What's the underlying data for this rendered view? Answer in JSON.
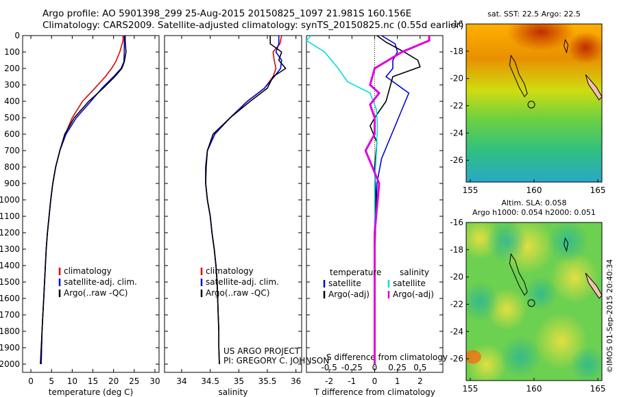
{
  "header": {
    "line1": "Argo profile: AO 5901398_299 25-Aug-2015 20150825_1097 21.981S 160.156E",
    "line2": "Climatology: CARS2009. Satellite-adjusted climatology: synTS_20150825.nc (0.55d earlier)"
  },
  "chart_data": [
    {
      "type": "line",
      "panel": "temperature",
      "xlabel": "temperature (deg C)",
      "xlim": [
        -2,
        31
      ],
      "xticks": [
        0,
        5,
        10,
        15,
        20,
        25,
        30
      ],
      "ylim": [
        0,
        2050
      ],
      "yticks": [
        0,
        100,
        200,
        300,
        400,
        500,
        600,
        700,
        800,
        900,
        1000,
        1100,
        1200,
        1300,
        1400,
        1500,
        1600,
        1700,
        1800,
        1900,
        2000
      ],
      "legend": [
        "climatology",
        "satellite-adj. clim.",
        "Argo(..raw -QC)"
      ],
      "series": [
        {
          "name": "climatology",
          "color": "#dd0000",
          "x": [
            22.3,
            22.3,
            21.5,
            20.5,
            19.5,
            18.0,
            15.5,
            12.5,
            10.0,
            8.3,
            7.0,
            6.0,
            5.3,
            4.8,
            4.4,
            4.0,
            3.7,
            3.5,
            3.3,
            3.1,
            2.9,
            2.7,
            2.6,
            2.5
          ],
          "y": [
            0,
            30,
            100,
            160,
            200,
            250,
            320,
            400,
            500,
            600,
            700,
            800,
            900,
            1000,
            1100,
            1200,
            1300,
            1400,
            1500,
            1600,
            1700,
            1800,
            1900,
            2000
          ]
        },
        {
          "name": "satellite-adj. clim.",
          "color": "#0000dd",
          "x": [
            22.6,
            22.6,
            22.6,
            22.5,
            21.8,
            20.0,
            17.2,
            14.5,
            11.0,
            8.5,
            7.0,
            6.0,
            5.3,
            4.8,
            4.4,
            4.0,
            3.7,
            3.5,
            3.3,
            3.1,
            2.9,
            2.7,
            2.6,
            2.5
          ],
          "y": [
            0,
            30,
            100,
            160,
            200,
            250,
            320,
            400,
            500,
            600,
            700,
            800,
            900,
            1000,
            1100,
            1200,
            1300,
            1400,
            1500,
            1600,
            1700,
            1800,
            1900,
            2000
          ]
        },
        {
          "name": "Argo(..raw -QC)",
          "color": "#000000",
          "x": [
            22.8,
            22.8,
            23.0,
            22.6,
            22.0,
            20.3,
            17.5,
            14.0,
            10.5,
            8.2,
            7.0,
            6.0,
            5.3,
            4.8,
            4.4,
            4.0,
            3.7,
            3.5,
            3.3,
            3.1,
            2.9,
            2.7,
            2.5,
            2.3
          ],
          "y": [
            0,
            30,
            100,
            160,
            200,
            250,
            320,
            400,
            500,
            600,
            700,
            800,
            900,
            1000,
            1100,
            1200,
            1300,
            1400,
            1500,
            1600,
            1700,
            1800,
            1900,
            2000
          ]
        }
      ]
    },
    {
      "type": "line",
      "panel": "salinity",
      "xlabel": "salinity",
      "xlim": [
        33.7,
        36.1
      ],
      "xticks": [
        34,
        34.5,
        35,
        35.5,
        36
      ],
      "ylim": [
        0,
        2050
      ],
      "legend": [
        "climatology",
        "satellite-adj. clim.",
        "Argo(..raw -QC)"
      ],
      "series": [
        {
          "name": "climatology",
          "color": "#dd0000",
          "x": [
            35.75,
            35.72,
            35.6,
            35.62,
            35.65,
            35.6,
            35.45,
            35.15,
            34.85,
            34.58,
            34.45,
            34.42,
            34.42,
            34.45,
            34.5,
            34.53,
            34.57,
            34.6,
            34.62,
            34.63,
            34.64,
            34.65,
            34.65,
            34.66
          ],
          "y": [
            0,
            50,
            100,
            150,
            200,
            250,
            320,
            400,
            500,
            600,
            700,
            800,
            900,
            1000,
            1100,
            1200,
            1300,
            1400,
            1500,
            1600,
            1700,
            1800,
            1900,
            2000
          ]
        },
        {
          "name": "satellite-adj. clim.",
          "color": "#0000dd",
          "x": [
            35.7,
            35.7,
            35.65,
            35.75,
            35.73,
            35.62,
            35.45,
            35.15,
            34.85,
            34.58,
            34.45,
            34.42,
            34.42,
            34.45,
            34.5,
            34.53,
            34.57,
            34.6,
            34.62,
            34.63,
            34.64,
            34.65,
            34.65,
            34.66
          ],
          "y": [
            0,
            50,
            100,
            150,
            200,
            250,
            320,
            400,
            500,
            600,
            700,
            800,
            900,
            1000,
            1100,
            1200,
            1300,
            1400,
            1500,
            1600,
            1700,
            1800,
            1900,
            2000
          ]
        },
        {
          "name": "Argo(..raw -QC)",
          "color": "#000000",
          "x": [
            35.55,
            35.55,
            35.75,
            35.7,
            35.82,
            35.6,
            35.5,
            35.2,
            34.85,
            34.55,
            34.45,
            34.43,
            34.42,
            34.45,
            34.5,
            34.53,
            34.57,
            34.6,
            34.62,
            34.63,
            34.64,
            34.65,
            34.65,
            34.66
          ],
          "y": [
            0,
            50,
            100,
            150,
            200,
            250,
            320,
            400,
            500,
            600,
            700,
            800,
            900,
            1000,
            1100,
            1200,
            1300,
            1400,
            1500,
            1600,
            1700,
            1800,
            1900,
            2000
          ]
        }
      ]
    },
    {
      "type": "line",
      "panel": "difference",
      "xlabel": "T difference from climatology",
      "xlabel_top": "S difference from climatology",
      "xlim": [
        -3.0,
        3.0
      ],
      "xticks": [
        -2,
        -1,
        0,
        1,
        2
      ],
      "s_ticks": [
        -0.5,
        -0.25,
        0,
        0.25,
        0.5
      ],
      "ylim": [
        0,
        2050
      ],
      "legend_headers": [
        "temperature",
        "salinity"
      ],
      "legend": [
        "satellite",
        "Argo(-adj)",
        "satellite",
        "Argo(-adj)"
      ],
      "series": [
        {
          "name": "satellite",
          "group": "temperature",
          "color": "#0000dd",
          "x": [
            0.3,
            0.9,
            1.0,
            0.8,
            0.8,
            0.5,
            1.5,
            1.2,
            0.9,
            0.6,
            0.3,
            0.1,
            0.05,
            0.0,
            0.0,
            0.0
          ],
          "y": [
            0,
            50,
            100,
            150,
            200,
            250,
            350,
            450,
            550,
            650,
            750,
            900,
            1100,
            1400,
            1700,
            2000
          ]
        },
        {
          "name": "Argo(-adj)",
          "group": "temperature",
          "color": "#000000",
          "x": [
            0.1,
            0.5,
            1.3,
            1.9,
            2.0,
            0.8,
            0.7,
            0.5,
            0.0,
            -0.2,
            0.1,
            0.0,
            0.05,
            0.0,
            0.0,
            0.0
          ],
          "y": [
            0,
            40,
            100,
            150,
            190,
            250,
            300,
            400,
            500,
            550,
            650,
            800,
            1000,
            1400,
            1700,
            2000
          ]
        },
        {
          "name": "satellite",
          "group": "salinity",
          "color": "#00dddd",
          "x": [
            -0.7,
            -0.75,
            -0.55,
            -0.4,
            -0.3,
            -0.05,
            0.02,
            0.03,
            0.02,
            0.0,
            0.0,
            0.0
          ],
          "y": [
            0,
            30,
            100,
            200,
            280,
            350,
            450,
            550,
            700,
            900,
            1300,
            2000
          ]
        },
        {
          "name": "Argo(-adj)",
          "group": "salinity",
          "color": "#dd00dd",
          "x": [
            0.6,
            0.6,
            0.3,
            0.0,
            -0.05,
            0.05,
            -0.05,
            0.0,
            0.0,
            -0.1,
            0.05,
            0.0,
            0.0,
            0.0
          ],
          "y": [
            0,
            30,
            100,
            200,
            300,
            350,
            420,
            500,
            600,
            700,
            900,
            1200,
            1600,
            2000
          ]
        }
      ]
    }
  ],
  "maps": {
    "sst": {
      "title": "sat. SST: 22.5 Argo: 22.5",
      "xticks": [
        "155",
        "160",
        "165"
      ],
      "yticks": [
        "-16",
        "-18",
        "-20",
        "-22",
        "-24",
        "-26"
      ]
    },
    "sla": {
      "title1": "Altim. SLA: 0.058",
      "title2": "Argo h1000: 0.054 h2000: 0.051",
      "xticks": [
        "155",
        "160",
        "165"
      ],
      "yticks": [
        "-16",
        "-18",
        "-20",
        "-22",
        "-24",
        "-26"
      ]
    }
  },
  "annotations": {
    "project1": "US ARGO PROJECT",
    "project2": "PI: GREGORY C. JOHNSON",
    "credit": "©IMOS 01-Sep-2015 20:40:34"
  }
}
